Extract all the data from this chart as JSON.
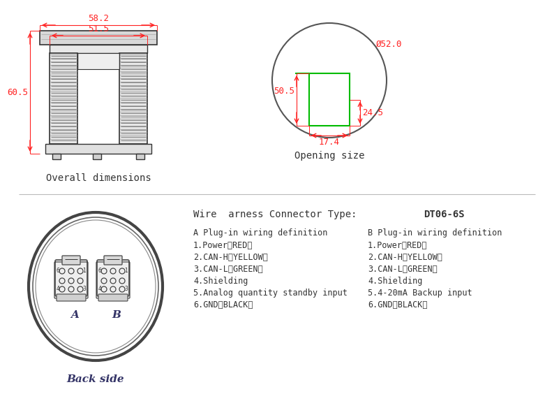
{
  "bg_color": "#ffffff",
  "dark_color": "#333333",
  "dim_color": "#ff2020",
  "green_color": "#00bb00",
  "gray_color": "#999999",
  "medium_gray": "#aaaaaa",
  "light_gray": "#cccccc",
  "fill_gray": "#e0e0e0",
  "dark_gray": "#666666",
  "overall_label": "Overall dimensions",
  "opening_label": "Opening size",
  "backside_label": "Back side",
  "dim_58_2": "58.2",
  "dim_51_5": "51.5",
  "dim_60_5": "60.5",
  "dim_52_0": "Ø52.0",
  "dim_50_5": "50.5",
  "dim_24_5": "24.5",
  "dim_17_4": "17.4",
  "connector_type_left": "Wire  arness Connector Type:",
  "connector_type_right": "DT06-6S",
  "A_title": "A Plug-in wiring definition",
  "A_lines": [
    "1.Power（RED）",
    "2.CAN-H（YELLOW）",
    "3.CAN-L（GREEN）",
    "4.Shielding",
    "5.Analog quantity standby input",
    "6.GND（BLACK）"
  ],
  "B_title": "B Plug-in wiring definition",
  "B_lines": [
    "1.Power（RED）",
    "2.CAN-H（YELLOW）",
    "3.CAN-L（GREEN）",
    "4.Shielding",
    "5.4-20mA Backup input",
    "6.GND（BLACK）"
  ]
}
